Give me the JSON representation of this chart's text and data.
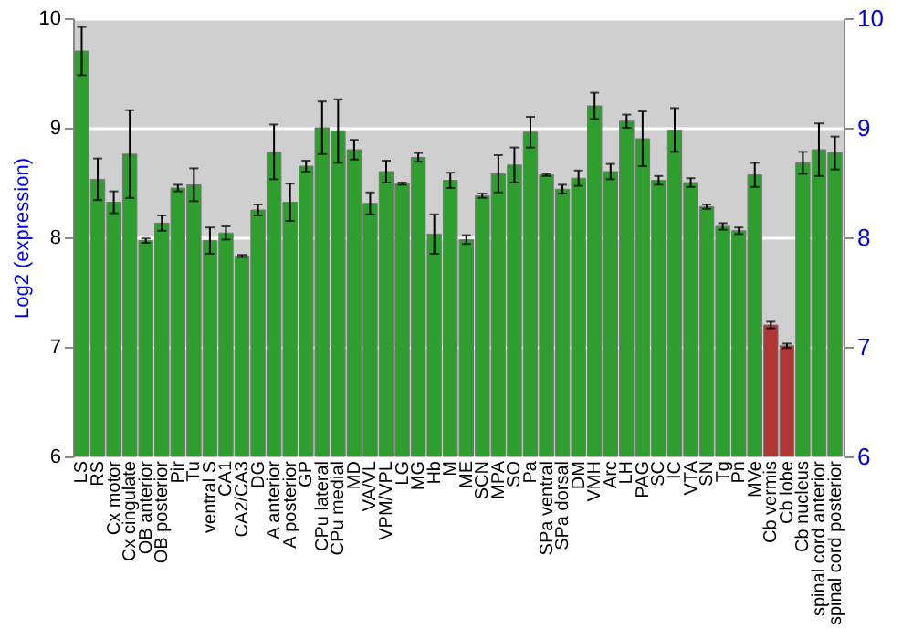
{
  "chart_data": {
    "type": "bar",
    "ylabel": "Log2 (expression)",
    "categories": [
      "LS",
      "RS",
      "Cx motor",
      "Cx cingulate",
      "OB anterior",
      "OB posterior",
      "Pir",
      "Tu",
      "ventral S",
      "CA1",
      "CA2/CA3",
      "DG",
      "A anterior",
      "A posterior",
      "GP",
      "CPu lateral",
      "CPu medial",
      "MD",
      "VA/VL",
      "VPM/VPL",
      "LG",
      "MG",
      "Hb",
      "M",
      "ME",
      "SCN",
      "MPA",
      "SO",
      "Pa",
      "SPa ventral",
      "SPa dorsal",
      "DM",
      "VMH",
      "Arc",
      "LH",
      "PAG",
      "SC",
      "IC",
      "VTA",
      "SN",
      "Tg",
      "Pn",
      "MVe",
      "Cb vermis",
      "Cb lobe",
      "Cb nucleus",
      "spinal cord anterior",
      "spinal cord posterior"
    ],
    "values": [
      9.7,
      8.53,
      8.32,
      8.76,
      7.97,
      8.13,
      8.45,
      8.48,
      7.97,
      8.04,
      7.83,
      8.25,
      8.78,
      8.32,
      8.65,
      9.0,
      8.97,
      8.8,
      8.31,
      8.6,
      8.49,
      8.73,
      8.03,
      8.52,
      7.98,
      8.38,
      8.58,
      8.66,
      8.96,
      8.57,
      8.44,
      8.54,
      9.2,
      8.6,
      9.06,
      8.9,
      8.52,
      8.98,
      8.5,
      8.28,
      8.1,
      8.06,
      8.57,
      7.2,
      7.01,
      8.68,
      8.8,
      8.77
    ],
    "errors": [
      0.22,
      0.19,
      0.1,
      0.4,
      0.02,
      0.07,
      0.03,
      0.15,
      0.12,
      0.06,
      0.01,
      0.05,
      0.25,
      0.17,
      0.05,
      0.24,
      0.29,
      0.09,
      0.1,
      0.1,
      0.01,
      0.04,
      0.18,
      0.07,
      0.04,
      0.02,
      0.17,
      0.16,
      0.14,
      0.01,
      0.04,
      0.07,
      0.12,
      0.07,
      0.06,
      0.25,
      0.04,
      0.2,
      0.04,
      0.02,
      0.03,
      0.03,
      0.11,
      0.03,
      0.02,
      0.1,
      0.24,
      0.15
    ],
    "colors": [
      "#2e9e2e",
      "#2e9e2e",
      "#2e9e2e",
      "#2e9e2e",
      "#2e9e2e",
      "#2e9e2e",
      "#2e9e2e",
      "#2e9e2e",
      "#2e9e2e",
      "#2e9e2e",
      "#2e9e2e",
      "#2e9e2e",
      "#2e9e2e",
      "#2e9e2e",
      "#2e9e2e",
      "#2e9e2e",
      "#2e9e2e",
      "#2e9e2e",
      "#2e9e2e",
      "#2e9e2e",
      "#2e9e2e",
      "#2e9e2e",
      "#2e9e2e",
      "#2e9e2e",
      "#2e9e2e",
      "#2e9e2e",
      "#2e9e2e",
      "#2e9e2e",
      "#2e9e2e",
      "#2e9e2e",
      "#2e9e2e",
      "#2e9e2e",
      "#2e9e2e",
      "#2e9e2e",
      "#2e9e2e",
      "#2e9e2e",
      "#2e9e2e",
      "#2e9e2e",
      "#2e9e2e",
      "#2e9e2e",
      "#2e9e2e",
      "#2e9e2e",
      "#2e9e2e",
      "#b03535",
      "#b03535",
      "#2e9e2e",
      "#2e9e2e",
      "#2e9e2e"
    ],
    "ylim": [
      6,
      10
    ],
    "yticks": [
      6,
      7,
      8,
      9,
      10
    ],
    "y2lim": [
      6,
      10
    ],
    "y2ticks": [
      6,
      7,
      8,
      9,
      10
    ],
    "grid": "y"
  }
}
